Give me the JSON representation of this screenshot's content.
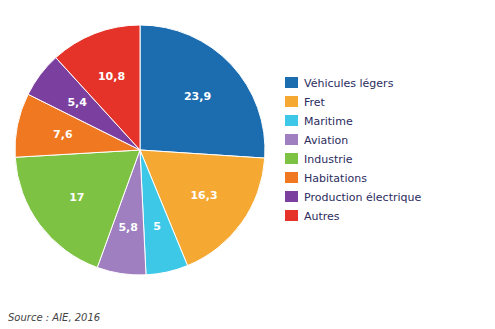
{
  "chart_data": {
    "type": "pie",
    "categories": [
      "Véhicules légers",
      "Fret",
      "Maritime",
      "Aviation",
      "Industrie",
      "Habitations",
      "Production électrique",
      "Autres"
    ],
    "values": [
      23.9,
      16.3,
      5.0,
      5.8,
      17.0,
      7.6,
      5.4,
      10.8
    ],
    "value_labels": [
      "23,9",
      "16,3",
      "5",
      "5,8",
      "17",
      "7,6",
      "5,4",
      "10,8"
    ],
    "colors": [
      "#1c6cb0",
      "#f5a832",
      "#3ec8e8",
      "#a07fc0",
      "#7dc242",
      "#f07820",
      "#7b3fa0",
      "#e63329"
    ],
    "data_labels": true,
    "legend": "right",
    "annotations": [
      "Source : AIE, 2016"
    ]
  }
}
